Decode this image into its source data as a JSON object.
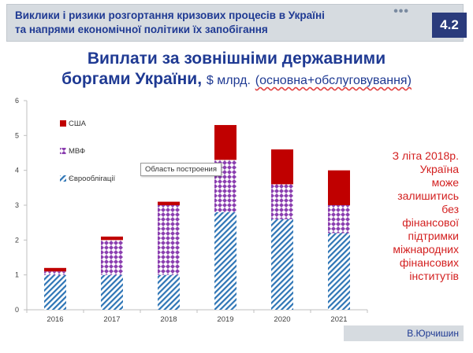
{
  "header": {
    "title": "Виклики і ризики розгортання кризових процесів в Україні\nта напрями економічної політики їх запобігання",
    "dots": "•••",
    "badge": "4.2"
  },
  "slide": {
    "title_line1": "Виплати за зовнішніми державними",
    "title_line2_bold": "боргами України,",
    "title_unit": "$ млрд.",
    "title_paren": "(основна+обслуговування)"
  },
  "tooltip": "Область построения",
  "note": "З літа 2018р.\nУкраїна\nможе\nзалишитись\nбез\nфінансової\nпідтримки\nміжнародних\nфінансових\nінститутів",
  "author": "В.Юрчишин",
  "colors": {
    "usa": "#c00000",
    "imf": "#8b3fb0",
    "euro": "#2e75b6",
    "title": "#1f3a93"
  },
  "chart_data": {
    "type": "bar",
    "stacked": true,
    "categories": [
      "2016",
      "2017",
      "2018",
      "2019",
      "2020",
      "2021"
    ],
    "series": [
      {
        "name": "Єврооблігації",
        "values": [
          1.0,
          1.0,
          1.0,
          2.8,
          2.6,
          2.2
        ]
      },
      {
        "name": "МВФ",
        "values": [
          0.1,
          1.0,
          2.0,
          1.5,
          1.0,
          0.8
        ]
      },
      {
        "name": "США",
        "values": [
          0.1,
          0.1,
          0.1,
          1.0,
          1.0,
          1.0
        ]
      }
    ],
    "ylim": [
      0,
      6
    ],
    "yticks": [
      "0",
      "1",
      "2",
      "3",
      "4",
      "5",
      "6"
    ],
    "grid": false,
    "legend": "top-left"
  }
}
